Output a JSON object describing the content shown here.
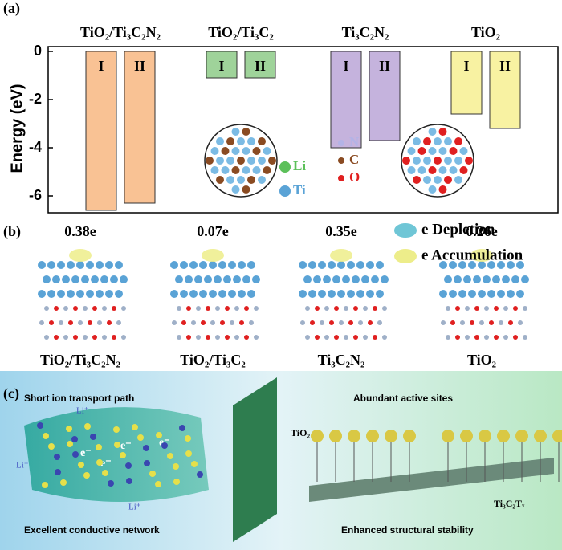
{
  "chart_data": {
    "type": "bar",
    "panel_label": "(a)",
    "y_label": "Energy (eV)",
    "categories": [
      "TiO₂/Ti₃C₂N₂",
      "TiO₂/Ti₃C₂",
      "Ti₃C₂N₂",
      "TiO₂"
    ],
    "colors": [
      "#f9c294",
      "#9fd39a",
      "#c5b3dd",
      "#f8f2a2"
    ],
    "series": [
      {
        "name": "I",
        "values": [
          -6.6,
          -1.1,
          -4.0,
          -2.6
        ]
      },
      {
        "name": "II",
        "values": [
          -6.3,
          -1.1,
          -3.7,
          -3.2
        ]
      }
    ],
    "ylim": [
      -6.7,
      0.2
    ],
    "yticks": [
      0,
      -2,
      -4,
      -6
    ],
    "atom_legend": [
      {
        "label": "Li",
        "color": "#5cc05a"
      },
      {
        "label": "Ti",
        "color": "#5aa3d6"
      },
      {
        "label": "N",
        "color": "#b3b3e6"
      },
      {
        "label": "C",
        "color": "#8a4b22"
      },
      {
        "label": "O",
        "color": "#e02020"
      }
    ]
  },
  "panel_b": {
    "panel_label": "(b)",
    "structures": [
      {
        "name": "TiO₂/Ti₃C₂N₂",
        "charge": "0.38e"
      },
      {
        "name": "TiO₂/Ti₃C₂",
        "charge": "0.07e"
      },
      {
        "name": "Ti₃C₂N₂",
        "charge": "0.35e"
      },
      {
        "name": "TiO₂",
        "charge": "0.26e"
      }
    ],
    "legend": [
      {
        "label": "e Depletion",
        "color": "#6fc6d6"
      },
      {
        "label": "e Accumulation",
        "color": "#eded8a"
      }
    ]
  },
  "panel_c": {
    "panel_label": "(c)",
    "features": [
      "Short ion transport path",
      "Excellent conductive network",
      "Abundant active sites",
      "Enhanced structural stability"
    ],
    "ion": "Li⁺",
    "electron": "e⁻",
    "tio2": "TiO₂",
    "mxene": "Ti₃C₂Tₓ"
  }
}
